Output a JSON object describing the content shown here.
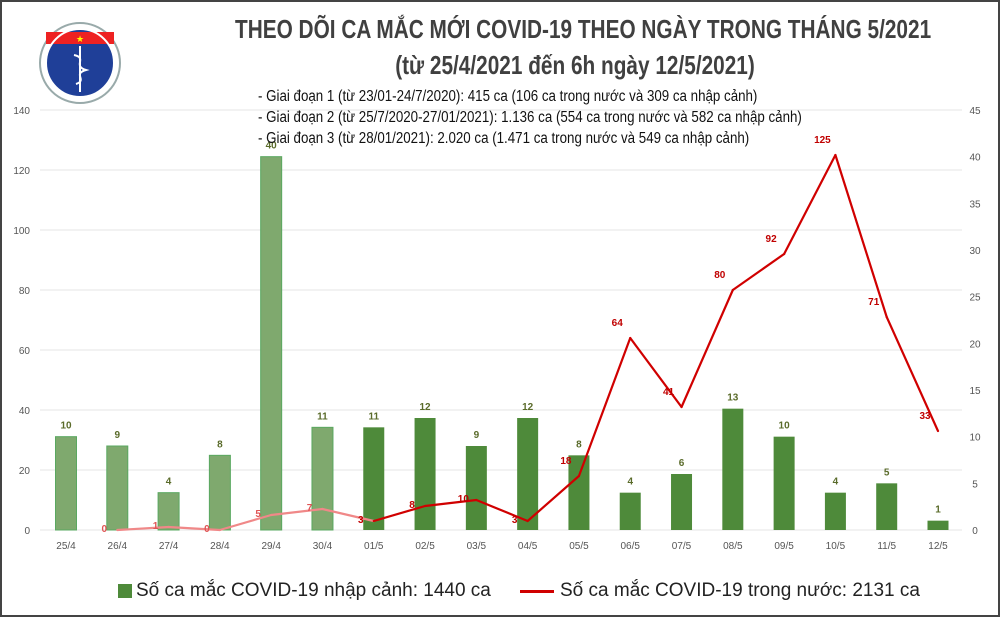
{
  "logo": {
    "text_top": "BỘ Y TẾ",
    "text_bottom": "MINISTRY OF HEALTH"
  },
  "title_line1": "THEO DÕI CA MẮC MỚI COVID-19 THEO NGÀY TRONG THÁNG 5/2021",
  "title_line2": "(từ 25/4/2021 đến 6h ngày 12/5/2021)",
  "notes": [
    "- Giai đoạn 1 (từ 23/01-24/7/2020): 415 ca (106 ca trong nước và 309 ca nhập cảnh)",
    "- Giai đoạn 2 (từ 25/7/2020-27/01/2021): 1.136 ca (554 ca trong nước và 582 ca nhập cảnh)",
    "- Giai đoạn 3 (từ 28/01/2021): 2.020 ca (1.471 ca trong nước và 549 ca nhập cảnh)"
  ],
  "chart_data": {
    "type": "bar+line",
    "categories": [
      "25/4",
      "26/4",
      "27/4",
      "28/4",
      "29/4",
      "30/4",
      "01/5",
      "02/5",
      "03/5",
      "04/5",
      "05/5",
      "06/5",
      "07/5",
      "08/5",
      "09/5",
      "10/5",
      "11/5",
      "12/5"
    ],
    "series": [
      {
        "name": "Số ca mắc COVID-19 nhập cảnh: 1440 ca",
        "type": "bar",
        "axis": "right",
        "color": "#4e8a3a",
        "faded_color": "#7fa96e",
        "values": [
          10,
          9,
          4,
          8,
          40,
          11,
          11,
          12,
          9,
          12,
          8,
          4,
          6,
          13,
          10,
          4,
          5,
          1
        ]
      },
      {
        "name": "Số ca mắc COVID-19 trong nước: 2131 ca",
        "type": "line",
        "axis": "left",
        "color": "#d00000",
        "faded_color": "#f08888",
        "values": [
          null,
          0,
          1,
          0,
          5,
          7,
          3,
          8,
          10,
          3,
          18,
          64,
          41,
          80,
          92,
          125,
          71,
          33
        ]
      }
    ],
    "faded_until": "01/5",
    "left_axis": {
      "ylim": [
        0,
        140
      ],
      "ticks": [
        0,
        20,
        40,
        60,
        80,
        100,
        120,
        140
      ]
    },
    "right_axis": {
      "ylim": [
        0,
        45
      ],
      "ticks": [
        0,
        5,
        10,
        15,
        20,
        25,
        30,
        35,
        40,
        45
      ]
    },
    "grid": true,
    "legend": "bottom"
  }
}
